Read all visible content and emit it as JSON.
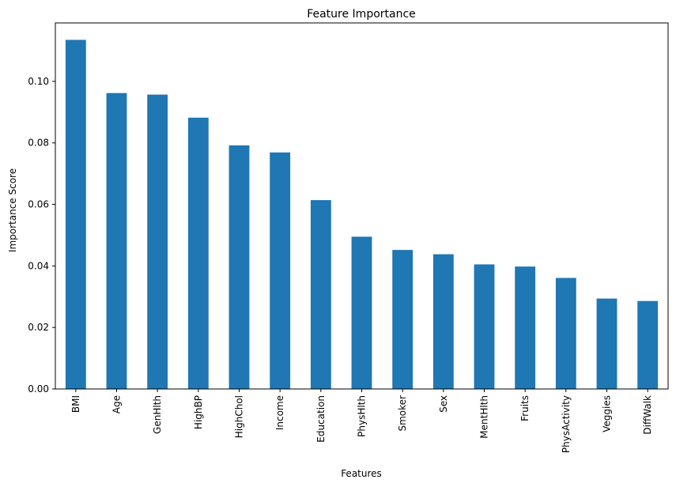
{
  "chart_data": {
    "type": "bar",
    "title": "Feature Importance",
    "xlabel": "Features",
    "ylabel": "Importance Score",
    "categories": [
      "BMI",
      "Age",
      "GenHlth",
      "HighBP",
      "HighChol",
      "Income",
      "Education",
      "PhysHlth",
      "Smoker",
      "Sex",
      "MentHlth",
      "Fruits",
      "PhysActivity",
      "Veggies",
      "DiffWalk"
    ],
    "values": [
      0.1135,
      0.0962,
      0.0957,
      0.0882,
      0.0792,
      0.0769,
      0.0614,
      0.0495,
      0.0452,
      0.0438,
      0.0405,
      0.0398,
      0.0361,
      0.0294,
      0.0286
    ],
    "ylim": [
      0,
      0.119
    ],
    "yticks": [
      "0.00",
      "0.02",
      "0.04",
      "0.06",
      "0.08",
      "0.10"
    ],
    "bar_color": "#1f77b4",
    "grid": false,
    "legend": false
  }
}
